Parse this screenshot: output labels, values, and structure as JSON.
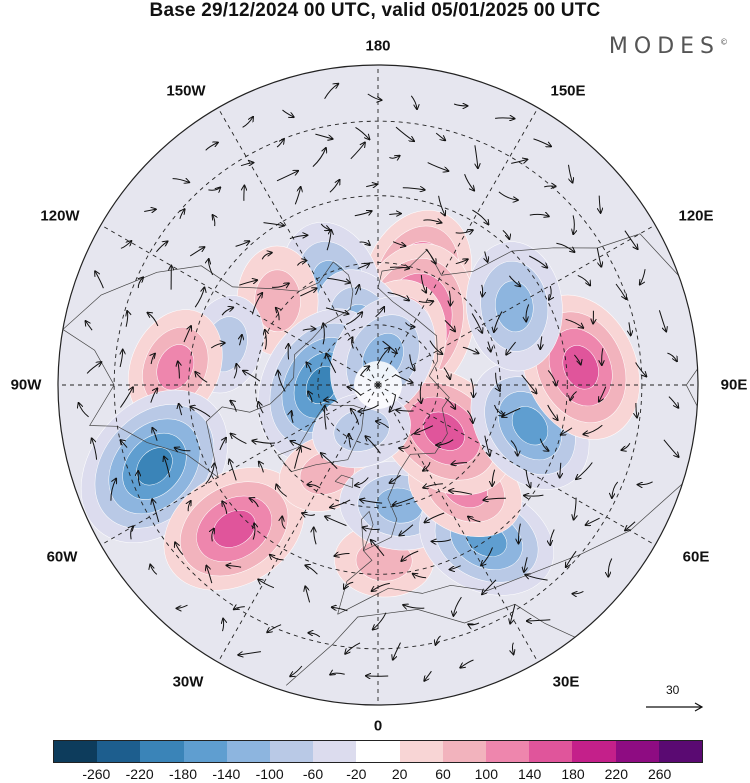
{
  "title": "Base 29/12/2024 00 UTC, valid 05/01/2025 00 UTC",
  "brand": "MODES",
  "brand_mark": "©",
  "longitude_labels": {
    "top": "180",
    "bottom": "0",
    "left": "90W",
    "right": "90E",
    "upper_left": "150W",
    "upper_right": "150E",
    "mid_upper_left": "120W",
    "mid_upper_right": "120E",
    "mid_lower_left": "60W",
    "mid_lower_right": "60E",
    "lower_left": "30W",
    "lower_right": "30E"
  },
  "reference_vector": {
    "value": "30"
  },
  "colorbar": {
    "colors": [
      "#0d3c5c",
      "#1d5e8e",
      "#3a84b8",
      "#5f9ed0",
      "#8db5df",
      "#b9c9e6",
      "#dcdcee",
      "#ffffff",
      "#f8d5d5",
      "#f2b3bd",
      "#ee86ad",
      "#e0559b",
      "#c4208a",
      "#8e0c82",
      "#5a0a72"
    ],
    "tick_labels": [
      "-260",
      "-220",
      "-180",
      "-140",
      "-100",
      "-60",
      "-20",
      "20",
      "60",
      "100",
      "140",
      "180",
      "220",
      "260"
    ]
  },
  "map": {
    "projection": "north-polar-stereographic",
    "field": "geopotential height anomaly with wind vectors",
    "anomaly_centers": [
      {
        "lon": 160,
        "lat": 62,
        "value": 140
      },
      {
        "lon": 150,
        "lat": 72,
        "value": 180
      },
      {
        "lon": 160,
        "lat": 80,
        "value": 140
      },
      {
        "lon": -155,
        "lat": 63,
        "value": -120
      },
      {
        "lon": -165,
        "lat": 75,
        "value": -100
      },
      {
        "lon": -130,
        "lat": 58,
        "value": 80
      },
      {
        "lon": -105,
        "lat": 52,
        "value": -60
      },
      {
        "lon": -95,
        "lat": 42,
        "value": 100
      },
      {
        "lon": -90,
        "lat": 76,
        "value": -180
      },
      {
        "lon": -70,
        "lat": 35,
        "value": -200
      },
      {
        "lon": -45,
        "lat": 42,
        "value": 160
      },
      {
        "lon": -30,
        "lat": 65,
        "value": 60
      },
      {
        "lon": 2,
        "lat": 48,
        "value": 60
      },
      {
        "lon": 10,
        "lat": 60,
        "value": -100
      },
      {
        "lon": 35,
        "lat": 45,
        "value": -140
      },
      {
        "lon": 40,
        "lat": 57,
        "value": 100
      },
      {
        "lon": 55,
        "lat": 70,
        "value": 160
      },
      {
        "lon": 75,
        "lat": 52,
        "value": -140
      },
      {
        "lon": 95,
        "lat": 42,
        "value": 160
      },
      {
        "lon": 120,
        "lat": 52,
        "value": -120
      },
      {
        "lon": 170,
        "lat": 83,
        "value": -120
      },
      {
        "lon": -20,
        "lat": 78,
        "value": -60
      }
    ]
  }
}
